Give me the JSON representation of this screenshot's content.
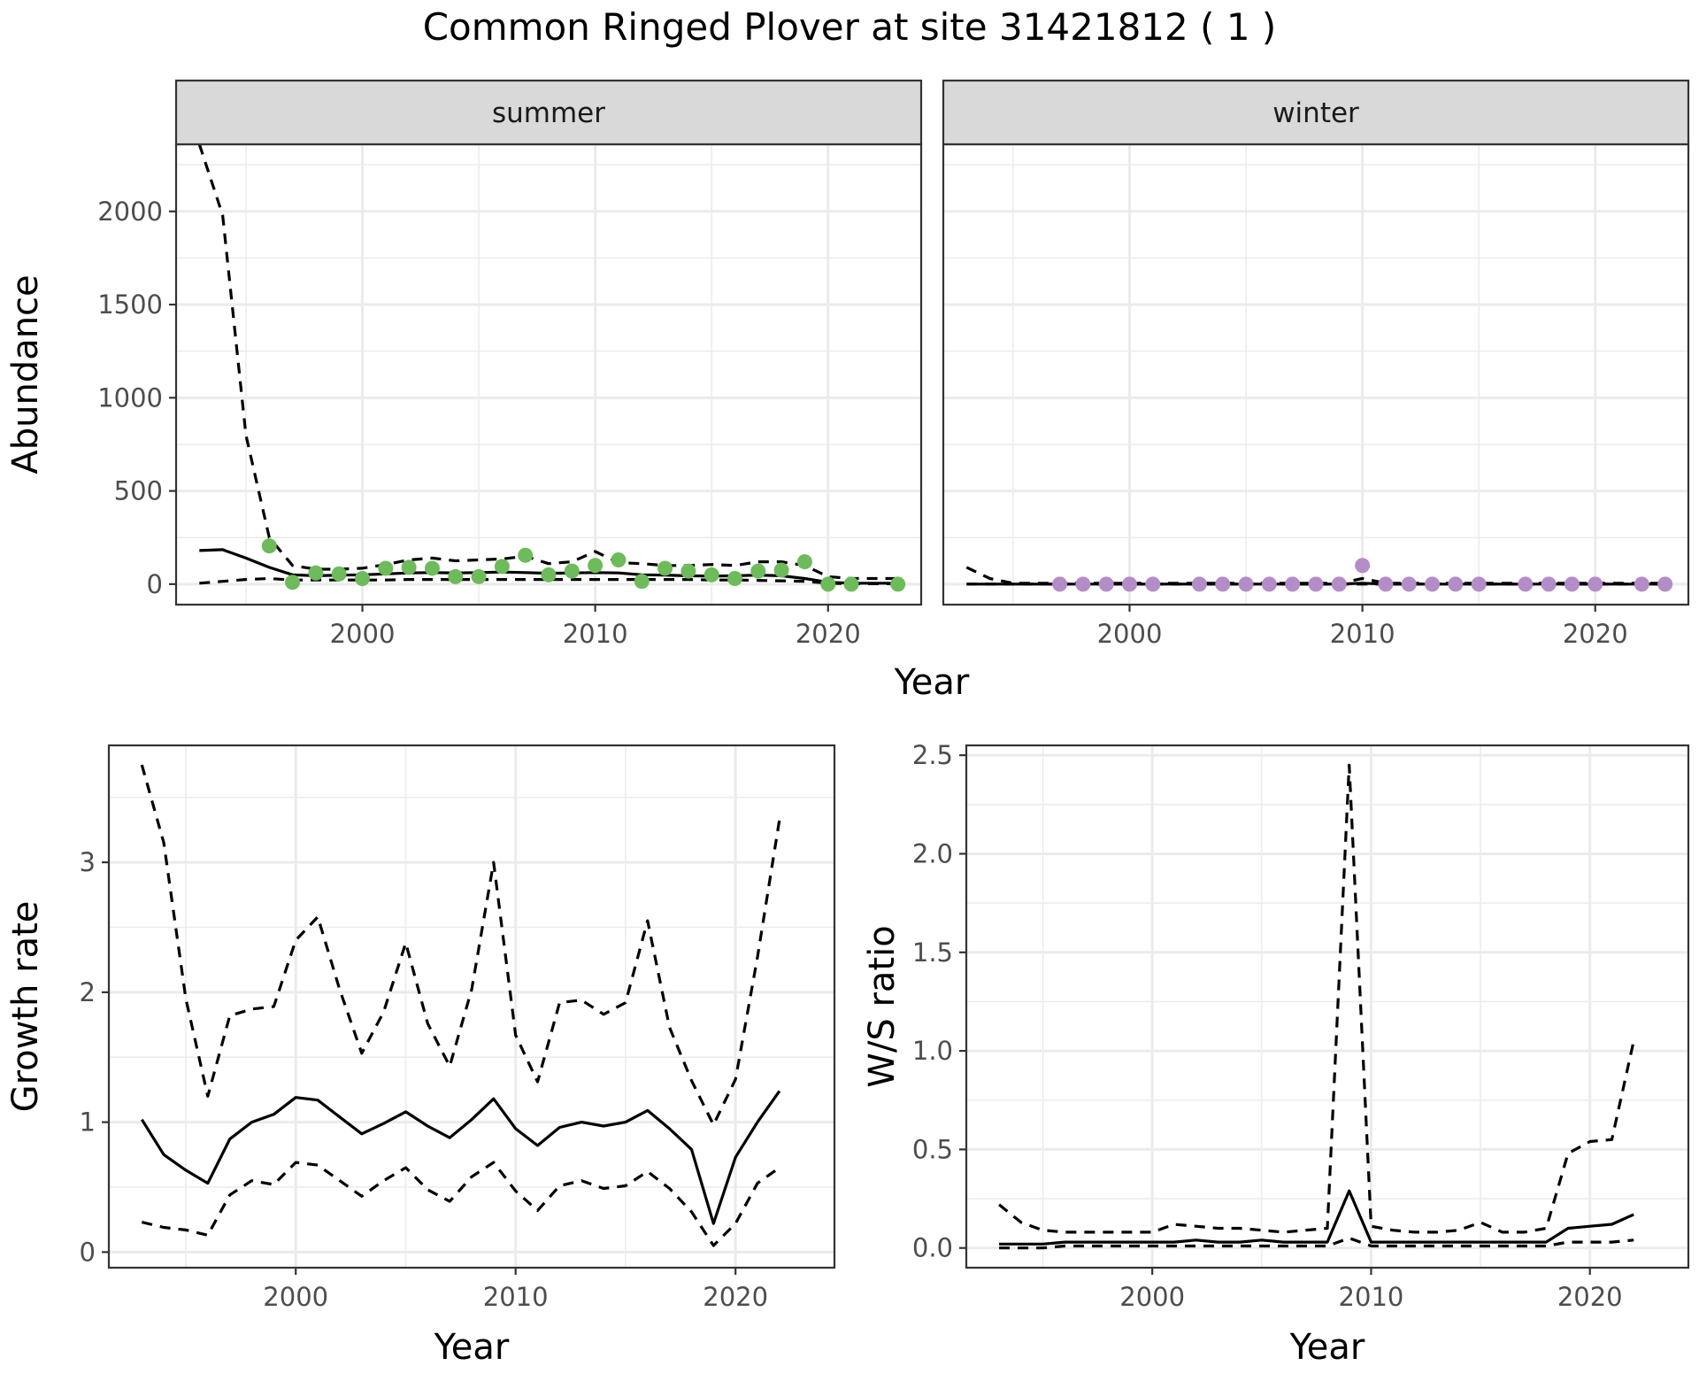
{
  "title": "Common Ringed Plover at site 31421812 ( 1 )",
  "colors": {
    "summer_points": "#6dbb5a",
    "winter_points": "#b48cc8",
    "lines": "#000000",
    "strip": "#d9d9d9",
    "grid": "#ebebeb"
  },
  "chart_data": [
    {
      "type": "line",
      "panel": "summer",
      "strip_label": "summer",
      "xlabel": "Year",
      "ylabel": "Abundance",
      "xlim": [
        1992,
        2024
      ],
      "ylim": [
        -110,
        2360
      ],
      "xticks": [
        2000,
        2010,
        2020
      ],
      "yticks": [
        0,
        500,
        1000,
        1500,
        2000
      ],
      "grid": true,
      "x": [
        1993,
        1994,
        1995,
        1996,
        1997,
        1998,
        1999,
        2000,
        2001,
        2002,
        2003,
        2004,
        2005,
        2006,
        2007,
        2008,
        2009,
        2010,
        2011,
        2012,
        2013,
        2014,
        2015,
        2016,
        2017,
        2018,
        2019,
        2020,
        2021,
        2022,
        2023
      ],
      "series": [
        {
          "role": "mean",
          "values": [
            180,
            185,
            140,
            90,
            50,
            45,
            48,
            50,
            55,
            60,
            62,
            60,
            62,
            65,
            62,
            58,
            60,
            62,
            60,
            50,
            48,
            45,
            43,
            45,
            48,
            45,
            30,
            10,
            5,
            5,
            5
          ]
        },
        {
          "role": "upper",
          "values": [
            2360,
            1980,
            800,
            250,
            100,
            80,
            80,
            85,
            105,
            130,
            140,
            125,
            130,
            135,
            150,
            110,
            120,
            175,
            115,
            110,
            100,
            100,
            105,
            100,
            120,
            120,
            100,
            40,
            30,
            30,
            30
          ]
        },
        {
          "role": "lower",
          "values": [
            5,
            15,
            25,
            30,
            22,
            22,
            22,
            22,
            22,
            25,
            25,
            25,
            25,
            25,
            25,
            25,
            25,
            25,
            25,
            25,
            25,
            25,
            22,
            22,
            20,
            18,
            15,
            5,
            2,
            2,
            2
          ]
        }
      ],
      "points": {
        "x": [
          1996,
          1997,
          1998,
          1999,
          2000,
          2001,
          2002,
          2003,
          2004,
          2005,
          2006,
          2007,
          2008,
          2009,
          2010,
          2011,
          2012,
          2013,
          2014,
          2015,
          2016,
          2017,
          2018,
          2019,
          2020,
          2021,
          2023
        ],
        "y": [
          205,
          10,
          60,
          55,
          30,
          85,
          90,
          85,
          40,
          40,
          95,
          155,
          50,
          70,
          100,
          130,
          15,
          85,
          70,
          50,
          30,
          70,
          75,
          120,
          0,
          0,
          0
        ]
      }
    },
    {
      "type": "line",
      "panel": "winter",
      "strip_label": "winter",
      "xlabel": "Year",
      "ylabel": "Abundance",
      "xlim": [
        1992,
        2024
      ],
      "ylim": [
        -110,
        2360
      ],
      "xticks": [
        2000,
        2010,
        2020
      ],
      "yticks": [
        0,
        500,
        1000,
        1500,
        2000
      ],
      "grid": true,
      "x": [
        1993,
        1994,
        1995,
        1996,
        1997,
        1998,
        1999,
        2000,
        2001,
        2002,
        2003,
        2004,
        2005,
        2006,
        2007,
        2008,
        2009,
        2010,
        2011,
        2012,
        2013,
        2014,
        2015,
        2016,
        2017,
        2018,
        2019,
        2020,
        2021,
        2022,
        2023
      ],
      "series": [
        {
          "role": "mean",
          "values": [
            0,
            0,
            0,
            0,
            0,
            0,
            0,
            0,
            0,
            0,
            0,
            0,
            0,
            0,
            0,
            0,
            0,
            5,
            0,
            0,
            0,
            0,
            0,
            0,
            0,
            0,
            0,
            0,
            0,
            0,
            0
          ]
        },
        {
          "role": "upper",
          "values": [
            90,
            30,
            5,
            5,
            5,
            5,
            5,
            5,
            5,
            5,
            5,
            5,
            5,
            5,
            5,
            5,
            5,
            30,
            5,
            5,
            5,
            5,
            5,
            5,
            5,
            5,
            5,
            5,
            5,
            5,
            5
          ]
        },
        {
          "role": "lower",
          "values": [
            0,
            0,
            0,
            0,
            0,
            0,
            0,
            0,
            0,
            0,
            0,
            0,
            0,
            0,
            0,
            0,
            0,
            0,
            0,
            0,
            0,
            0,
            0,
            0,
            0,
            0,
            0,
            0,
            0,
            0,
            0
          ]
        }
      ],
      "points": {
        "x": [
          1997,
          1998,
          1999,
          2000,
          2001,
          2003,
          2004,
          2005,
          2006,
          2007,
          2008,
          2009,
          2010,
          2011,
          2012,
          2013,
          2014,
          2015,
          2017,
          2018,
          2019,
          2020,
          2022,
          2023
        ],
        "y": [
          0,
          0,
          0,
          0,
          0,
          0,
          0,
          0,
          0,
          0,
          0,
          0,
          100,
          0,
          0,
          0,
          0,
          0,
          0,
          0,
          0,
          0,
          0,
          0
        ]
      }
    },
    {
      "type": "line",
      "panel": "growth",
      "xlabel": "Year",
      "ylabel": "Growth rate",
      "xlim": [
        1991.5,
        2024.5
      ],
      "ylim": [
        -0.12,
        3.9
      ],
      "xticks": [
        2000,
        2010,
        2020
      ],
      "yticks": [
        0,
        1,
        2,
        3
      ],
      "grid": true,
      "x": [
        1993,
        1994,
        1995,
        1996,
        1997,
        1998,
        1999,
        2000,
        2001,
        2002,
        2003,
        2004,
        2005,
        2006,
        2007,
        2008,
        2009,
        2010,
        2011,
        2012,
        2013,
        2014,
        2015,
        2016,
        2017,
        2018,
        2019,
        2020,
        2021,
        2022
      ],
      "series": [
        {
          "role": "mean",
          "values": [
            1.02,
            0.75,
            0.63,
            0.53,
            0.87,
            1.0,
            1.06,
            1.19,
            1.17,
            1.04,
            0.91,
            0.99,
            1.08,
            0.97,
            0.88,
            1.02,
            1.18,
            0.95,
            0.82,
            0.96,
            1.0,
            0.97,
            1.0,
            1.09,
            0.95,
            0.79,
            0.22,
            0.73,
            1.0,
            1.24
          ]
        },
        {
          "role": "upper",
          "values": [
            3.75,
            3.15,
            1.95,
            1.2,
            1.82,
            1.87,
            1.89,
            2.4,
            2.58,
            2.02,
            1.53,
            1.85,
            2.38,
            1.76,
            1.43,
            2.02,
            3.0,
            1.67,
            1.31,
            1.92,
            1.94,
            1.83,
            1.92,
            2.55,
            1.73,
            1.32,
            0.98,
            1.33,
            2.27,
            3.33
          ]
        },
        {
          "role": "lower",
          "values": [
            0.23,
            0.19,
            0.17,
            0.13,
            0.44,
            0.55,
            0.52,
            0.69,
            0.67,
            0.55,
            0.43,
            0.55,
            0.65,
            0.48,
            0.39,
            0.58,
            0.69,
            0.47,
            0.32,
            0.51,
            0.55,
            0.49,
            0.51,
            0.62,
            0.49,
            0.31,
            0.05,
            0.22,
            0.53,
            0.65
          ]
        }
      ]
    },
    {
      "type": "line",
      "panel": "ws_ratio",
      "xlabel": "Year",
      "ylabel": "W/S ratio",
      "xlim": [
        1991.5,
        2024.5
      ],
      "ylim": [
        -0.1,
        2.55
      ],
      "xticks": [
        2000,
        2010,
        2020
      ],
      "yticks": [
        0.0,
        0.5,
        1.0,
        1.5,
        2.0,
        2.5
      ],
      "ytick_labels": [
        "0.0",
        "0.5",
        "1.0",
        "1.5",
        "2.0",
        "2.5"
      ],
      "grid": true,
      "x": [
        1993,
        1994,
        1995,
        1996,
        1997,
        1998,
        1999,
        2000,
        2001,
        2002,
        2003,
        2004,
        2005,
        2006,
        2007,
        2008,
        2009,
        2010,
        2011,
        2012,
        2013,
        2014,
        2015,
        2016,
        2017,
        2018,
        2019,
        2020,
        2021,
        2022
      ],
      "series": [
        {
          "role": "mean",
          "values": [
            0.02,
            0.02,
            0.02,
            0.03,
            0.03,
            0.03,
            0.03,
            0.03,
            0.03,
            0.04,
            0.03,
            0.03,
            0.04,
            0.03,
            0.03,
            0.03,
            0.29,
            0.03,
            0.03,
            0.03,
            0.03,
            0.03,
            0.03,
            0.03,
            0.03,
            0.03,
            0.1,
            0.11,
            0.12,
            0.17
          ]
        },
        {
          "role": "upper",
          "values": [
            0.22,
            0.13,
            0.09,
            0.08,
            0.08,
            0.08,
            0.08,
            0.08,
            0.12,
            0.11,
            0.1,
            0.1,
            0.09,
            0.08,
            0.09,
            0.1,
            2.45,
            0.11,
            0.09,
            0.08,
            0.08,
            0.09,
            0.13,
            0.08,
            0.08,
            0.1,
            0.48,
            0.54,
            0.55,
            1.05
          ]
        },
        {
          "role": "lower",
          "values": [
            0.0,
            0.0,
            0.0,
            0.01,
            0.01,
            0.01,
            0.01,
            0.01,
            0.01,
            0.01,
            0.01,
            0.01,
            0.01,
            0.01,
            0.01,
            0.01,
            0.05,
            0.01,
            0.01,
            0.01,
            0.01,
            0.01,
            0.01,
            0.01,
            0.01,
            0.01,
            0.03,
            0.03,
            0.03,
            0.04
          ]
        }
      ]
    }
  ]
}
